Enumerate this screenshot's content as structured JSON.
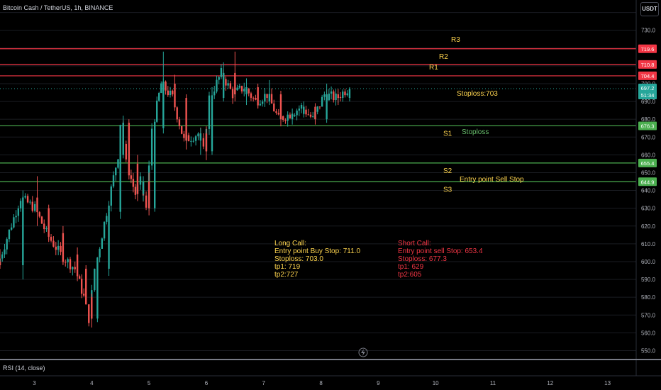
{
  "header": {
    "title": "Bitcoin Cash / TetherUS, 1h, BINANCE",
    "currency": "USDT"
  },
  "indicator": {
    "label": "RSI (14, close)"
  },
  "colors": {
    "background": "#000000",
    "up": "#26a69a",
    "down": "#ef5350",
    "resistance": "#f23645",
    "support": "#4caf50",
    "annotation_yellow": "#ffd54f",
    "annotation_red": "#f23645",
    "annotation_green": "#66bb6a"
  },
  "chart_data": {
    "type": "candlestick",
    "y_axis": {
      "min": 545,
      "max": 747,
      "ticks": [
        740,
        730,
        720,
        710,
        700,
        690,
        680,
        670,
        660,
        650,
        640,
        630,
        620,
        610,
        600,
        590,
        580,
        570,
        560,
        550
      ],
      "side": "right"
    },
    "x_axis": {
      "min": 2.4,
      "max": 13.5,
      "ticks": [
        "3",
        "4",
        "5",
        "6",
        "7",
        "8",
        "9",
        "10",
        "11",
        "12",
        "13"
      ]
    },
    "candles": [
      [
        2.4,
        600,
        607,
        596,
        598
      ],
      [
        2.8,
        598,
        640,
        590,
        636
      ],
      [
        3.05,
        636,
        648,
        620,
        630
      ],
      [
        3.25,
        630,
        632,
        612,
        616
      ],
      [
        3.5,
        616,
        620,
        598,
        604
      ],
      [
        3.75,
        604,
        608,
        590,
        596
      ],
      [
        3.9,
        596,
        598,
        576,
        580
      ],
      [
        4.0,
        580,
        582,
        563,
        568
      ],
      [
        4.1,
        568,
        600,
        566,
        596
      ],
      [
        4.3,
        596,
        632,
        592,
        628
      ],
      [
        4.5,
        628,
        665,
        624,
        660
      ],
      [
        4.55,
        660,
        682,
        658,
        678
      ],
      [
        4.65,
        678,
        680,
        650,
        655
      ],
      [
        4.8,
        655,
        660,
        634,
        638
      ],
      [
        4.9,
        638,
        648,
        634,
        645
      ],
      [
        5.0,
        645,
        650,
        626,
        630
      ],
      [
        5.1,
        630,
        680,
        628,
        675
      ],
      [
        5.25,
        675,
        718,
        672,
        700
      ],
      [
        5.45,
        700,
        705,
        688,
        692
      ],
      [
        5.65,
        692,
        694,
        663,
        668
      ],
      [
        5.9,
        668,
        675,
        660,
        672
      ],
      [
        6.0,
        672,
        676,
        657,
        662
      ],
      [
        6.1,
        662,
        698,
        660,
        692
      ],
      [
        6.3,
        692,
        712,
        690,
        706
      ],
      [
        6.5,
        706,
        718,
        690,
        694
      ],
      [
        6.7,
        694,
        703,
        688,
        698
      ],
      [
        6.9,
        698,
        700,
        686,
        690
      ],
      [
        7.1,
        690,
        702,
        688,
        694
      ],
      [
        7.3,
        694,
        696,
        676,
        680
      ],
      [
        7.5,
        680,
        686,
        677,
        683
      ],
      [
        7.7,
        683,
        690,
        681,
        687
      ],
      [
        7.9,
        687,
        689,
        677,
        680
      ],
      [
        8.1,
        680,
        700,
        678,
        694
      ],
      [
        8.3,
        694,
        697,
        688,
        692
      ],
      [
        8.5,
        692,
        698,
        690,
        697
      ]
    ],
    "levels": [
      {
        "label": "R3",
        "price": 719.6,
        "kind": "resistance",
        "tag": "719.6"
      },
      {
        "label": "R2",
        "price": 710.8,
        "kind": "resistance",
        "tag": "710.8"
      },
      {
        "label": "R1",
        "price": 704.4,
        "kind": "resistance",
        "tag": "704.4"
      },
      {
        "label": "S1",
        "price": 676.3,
        "kind": "support",
        "tag": "676.3"
      },
      {
        "label": "S2",
        "price": 655.4,
        "kind": "support",
        "tag": "655.4"
      },
      {
        "label": "S3",
        "price": 644.9,
        "kind": "support",
        "tag": "644.9"
      }
    ],
    "current_price": {
      "price": 697.2,
      "tag": "697.2",
      "countdown": "51:34"
    }
  },
  "annotations": {
    "stoploss_r": "Stoploss:703",
    "stoploss_s": "Stoploss",
    "entry_sell": "Entry point Sell Stop",
    "long_call": [
      "Long Call:",
      "Entry point Buy Stop: 711.0",
      "Stoploss: 703.0",
      "tp1: 719",
      "tp2:727"
    ],
    "short_call": [
      "Short Call:",
      "Entry point sell Stop: 653.4",
      "Stoploss: 677.3",
      "tp1: 629",
      "tp2:605"
    ]
  }
}
